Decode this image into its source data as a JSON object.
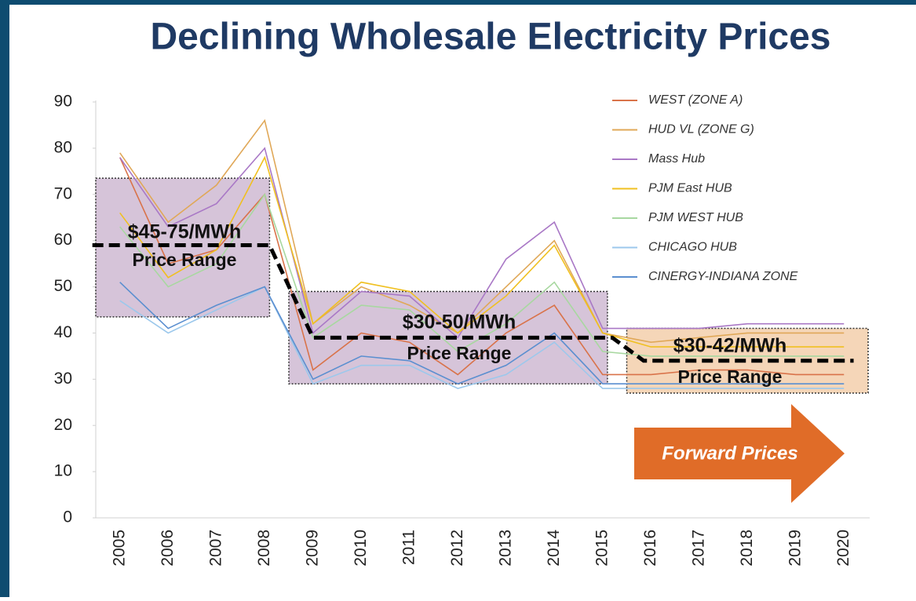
{
  "chart_data": {
    "type": "line",
    "title": "Declining Wholesale Electricity Prices",
    "categories": [
      "2005",
      "2006",
      "2007",
      "2008",
      "2009",
      "2010",
      "2011",
      "2012",
      "2013",
      "2014",
      "2015",
      "2016",
      "2017",
      "2018",
      "2019",
      "2020"
    ],
    "ylim": [
      0,
      90
    ],
    "yticks": [
      0,
      10,
      20,
      30,
      40,
      50,
      60,
      70,
      80,
      90
    ],
    "series": [
      {
        "name": "WEST (ZONE A)",
        "color": "#d9734a",
        "values": [
          78,
          55,
          58,
          70,
          32,
          40,
          38,
          31,
          40,
          46,
          31,
          31,
          32,
          32,
          31,
          31
        ]
      },
      {
        "name": "HUD VL (ZONE G)",
        "color": "#e0a858",
        "values": [
          79,
          64,
          72,
          86,
          42,
          50,
          46,
          40,
          50,
          60,
          40,
          38,
          39,
          40,
          40,
          40
        ]
      },
      {
        "name": "Mass Hub",
        "color": "#a978c6",
        "values": [
          78,
          63,
          68,
          80,
          40,
          49,
          48,
          39,
          56,
          64,
          41,
          41,
          41,
          42,
          42,
          42
        ]
      },
      {
        "name": "PJM East HUB",
        "color": "#f0c020",
        "values": [
          66,
          52,
          58,
          78,
          42,
          51,
          49,
          40,
          48,
          59,
          40,
          37,
          37,
          37,
          37,
          37
        ]
      },
      {
        "name": "PJM WEST HUB",
        "color": "#a8d8a0",
        "values": [
          63,
          50,
          55,
          70,
          39,
          46,
          45,
          36,
          42,
          51,
          36,
          35,
          35,
          35,
          35,
          35
        ]
      },
      {
        "name": "CHICAGO HUB",
        "color": "#9cc8ec",
        "values": [
          47,
          40,
          45,
          50,
          29,
          33,
          33,
          28,
          31,
          38,
          28,
          28,
          28,
          28,
          28,
          28
        ]
      },
      {
        "name": "CINERGY-INDIANA ZONE",
        "color": "#5b8fd0",
        "values": [
          51,
          41,
          46,
          50,
          30,
          35,
          34,
          29,
          33,
          40,
          29,
          29,
          29,
          29,
          29,
          29
        ]
      }
    ],
    "ranges": [
      {
        "label": "$45-75/MWh",
        "sublabel": "Price Range",
        "from": 0,
        "to": 3,
        "low": 43.5,
        "high": 73.5,
        "average": 59,
        "color": "#c8b0cc"
      },
      {
        "label": "$30-50/MWh",
        "sublabel": "Price Range",
        "from": 4,
        "to": 10,
        "low": 29,
        "high": 49,
        "average": 39,
        "color": "#c8b0cc"
      },
      {
        "label": "$30-42/MWh",
        "sublabel": "Price Range",
        "from": 11,
        "to": 15,
        "low": 27,
        "high": 41,
        "average": 34,
        "color": "#f2c8a0"
      }
    ],
    "annotation": "Forward Prices"
  }
}
